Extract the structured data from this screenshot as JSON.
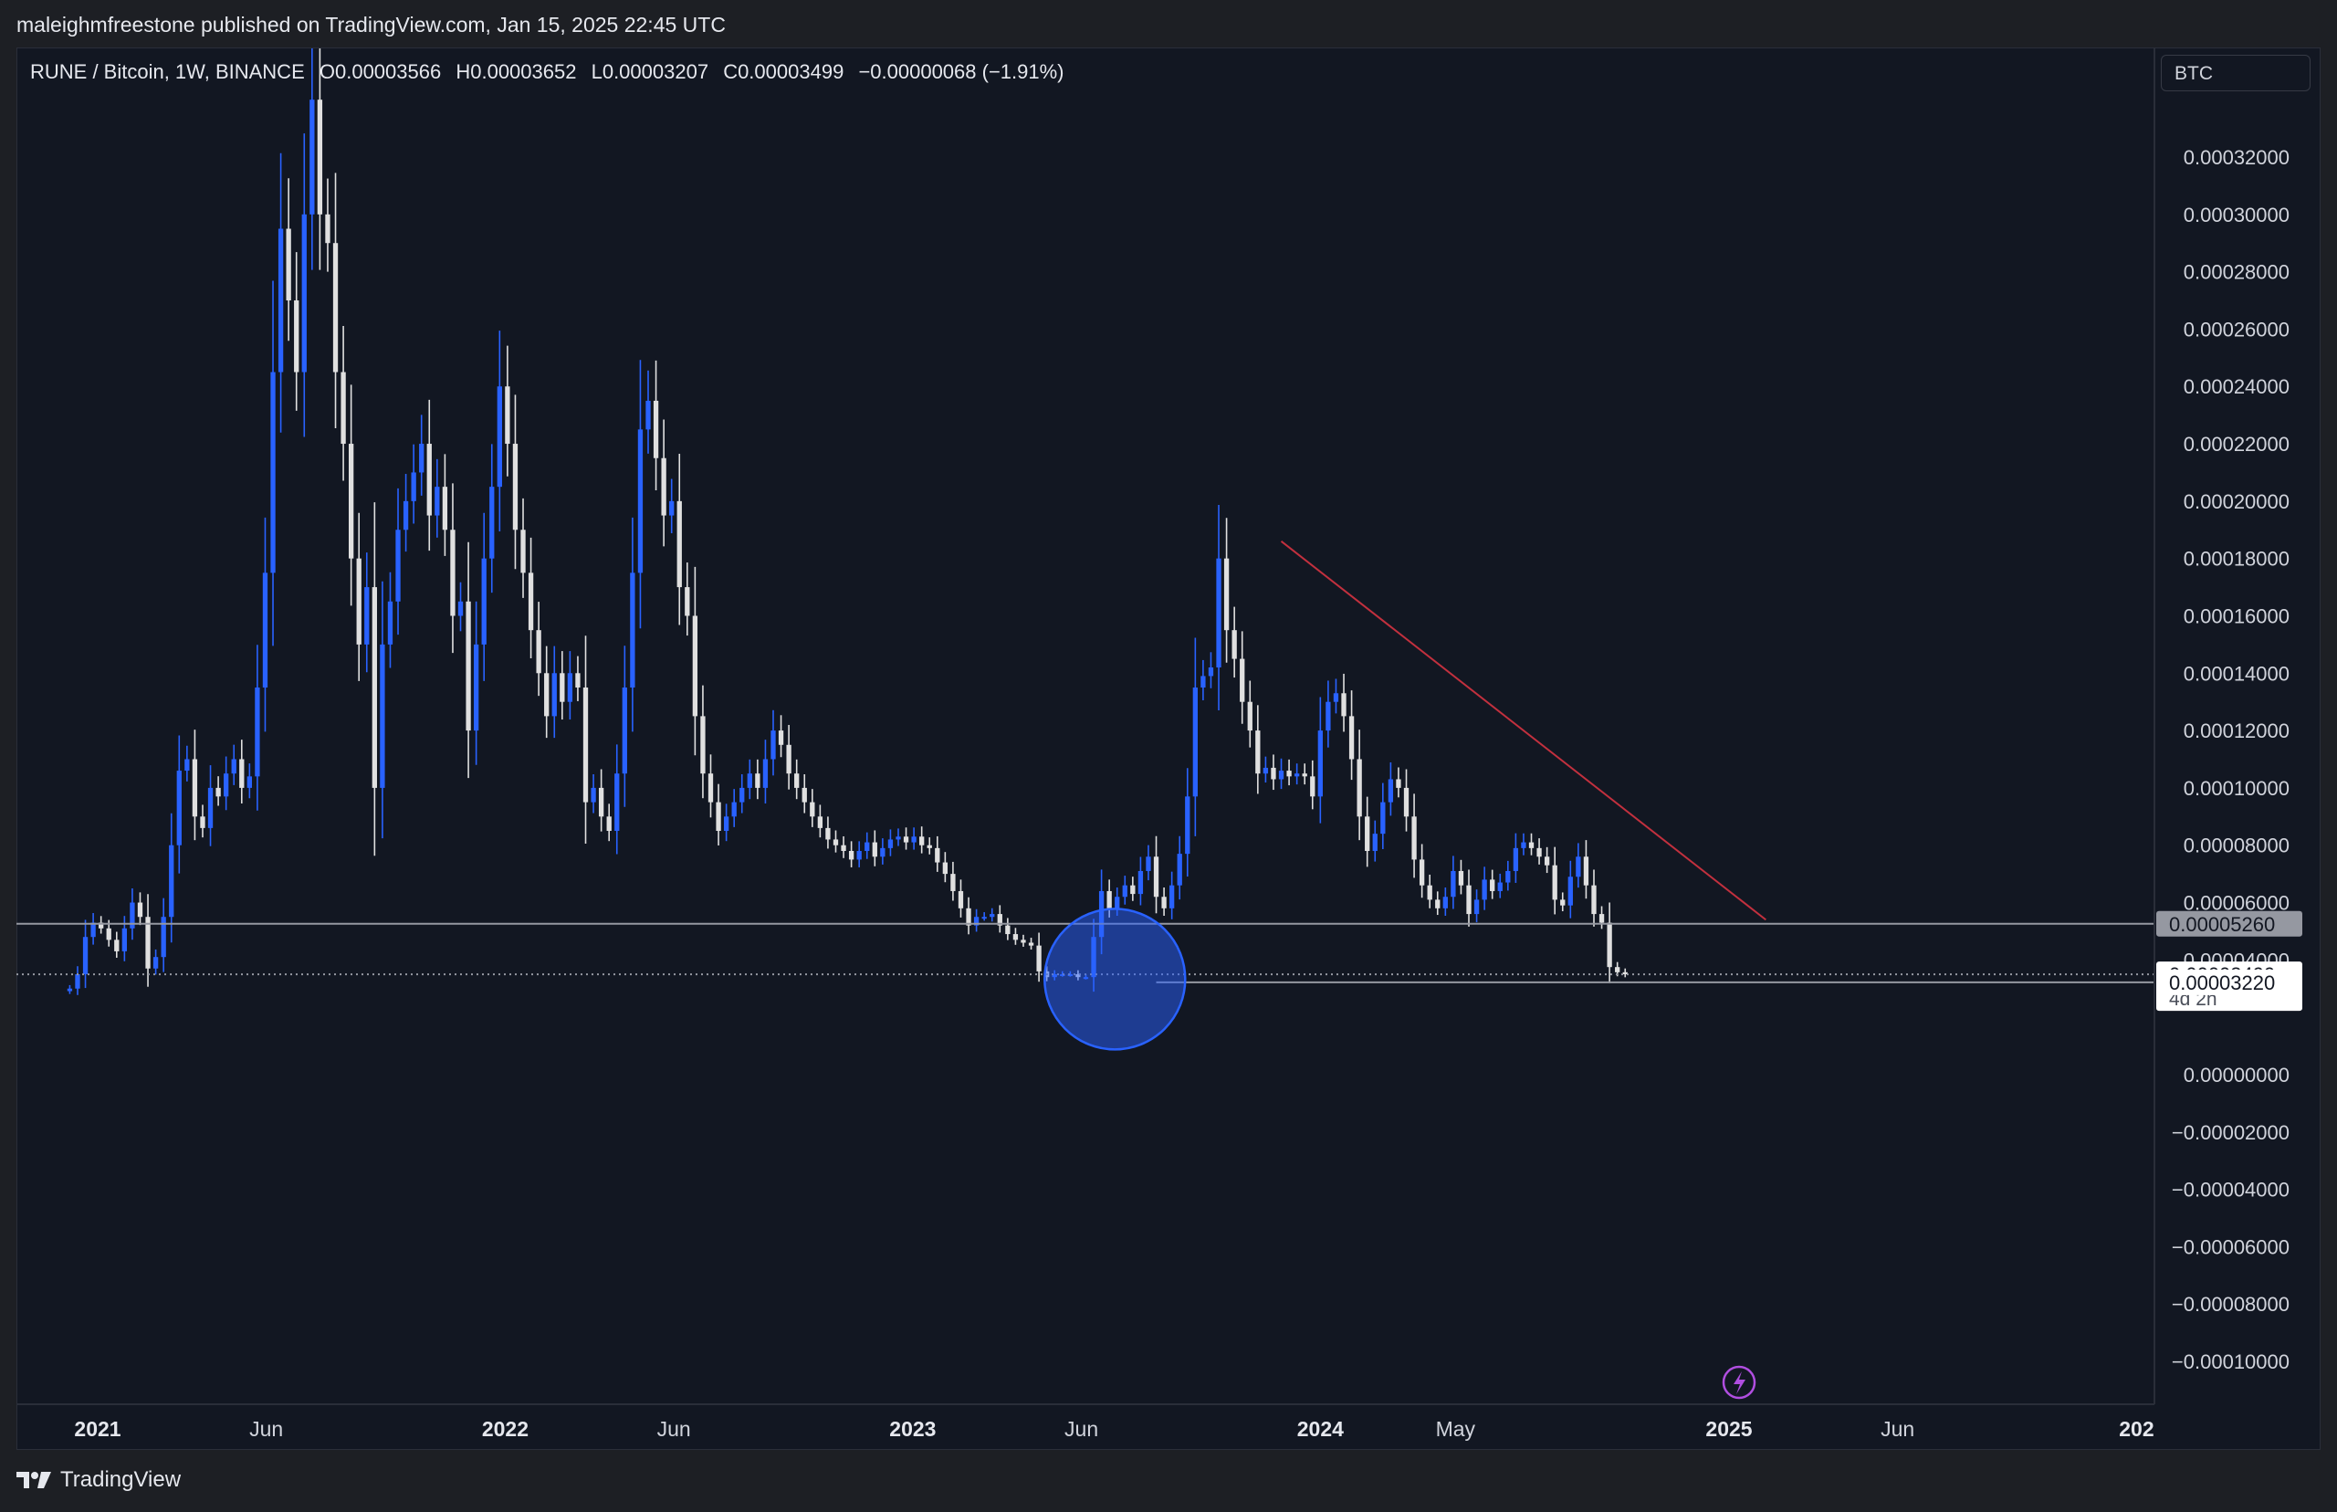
{
  "header": {
    "published_text": "maleighmfreestone published on TradingView.com, Jan 15, 2025 22:45 UTC"
  },
  "legend": {
    "symbol": "RUNE / Bitcoin, 1W, BINANCE",
    "open": "O0.00003566",
    "high": "H0.00003652",
    "low": "L0.00003207",
    "close": "C0.00003499",
    "change": "−0.00000068 (−1.91%)"
  },
  "currency_selector": "BTC",
  "footer": {
    "brand": "TradingView",
    "logo_icon": "tradingview-logo-icon"
  },
  "colors": {
    "background": "#121722",
    "up_candle": "#2962ff",
    "down_candle": "#e0e0e0",
    "trendline": "#c2303e",
    "highlight_circle": "#2962ff",
    "support_line": "#9598a1",
    "lightning_badge": "#b04ee0"
  },
  "chart_data": {
    "type": "candlestick",
    "title": "",
    "y_axis": {
      "side": "right",
      "ticks": [
        "0.00032000",
        "0.00030000",
        "0.00028000",
        "0.00026000",
        "0.00024000",
        "0.00022000",
        "0.00020000",
        "0.00018000",
        "0.00016000",
        "0.00014000",
        "0.00012000",
        "0.00010000",
        "0.00008000",
        "0.00006000",
        "0.00004000",
        "0.00000000",
        "−0.00002000",
        "−0.00004000",
        "−0.00006000",
        "−0.00008000",
        "−0.00010000"
      ],
      "ylim": [
        -0.00011,
        0.00034
      ],
      "grid": false
    },
    "x_axis": {
      "ticks": [
        {
          "label": "2021",
          "date": "2021-01-01",
          "bold": true
        },
        {
          "label": "Jun",
          "date": "2021-06-01",
          "bold": false
        },
        {
          "label": "2022",
          "date": "2022-01-01",
          "bold": true
        },
        {
          "label": "Jun",
          "date": "2022-06-01",
          "bold": false
        },
        {
          "label": "2023",
          "date": "2023-01-01",
          "bold": true
        },
        {
          "label": "Jun",
          "date": "2023-06-01",
          "bold": false
        },
        {
          "label": "2024",
          "date": "2024-01-01",
          "bold": true
        },
        {
          "label": "May",
          "date": "2024-05-01",
          "bold": false
        },
        {
          "label": "2025",
          "date": "2025-01-01",
          "bold": true
        },
        {
          "label": "Jun",
          "date": "2025-06-01",
          "bold": false
        },
        {
          "label": "202",
          "date": "2026-01-01",
          "bold": true
        }
      ]
    },
    "price_tags": [
      {
        "label": "0.00005260",
        "value": 5.26e-05,
        "style": "grey"
      },
      {
        "label": "0.00003499",
        "value": 3.499e-05,
        "style": "white",
        "countdown": "4d 2h"
      },
      {
        "label": "0.00003220",
        "value": 3.22e-05,
        "style": "white"
      }
    ],
    "horizontal_lines": [
      {
        "value": 5.26e-05,
        "style": "solid"
      },
      {
        "value": 3.499e-05,
        "style": "dotted"
      },
      {
        "value": 3.22e-05,
        "style": "solid",
        "x_start": "2023-08-07"
      }
    ],
    "trendline": {
      "from": {
        "date": "2023-11-27",
        "value": 0.000186
      },
      "to": {
        "date": "2025-02-03",
        "value": 5.4e-05
      }
    },
    "highlight_circle": {
      "center_date": "2023-07-01",
      "center_value": 3.33e-05
    },
    "weekly_close": [
      3e-05,
      3.5e-05,
      4.8e-05,
      5.3e-05,
      5.1e-05,
      4.7e-05,
      4.3e-05,
      5.1e-05,
      6e-05,
      5.5e-05,
      3.7e-05,
      4.1e-05,
      5.5e-05,
      8e-05,
      0.000106,
      0.00011,
      9e-05,
      8.6e-05,
      0.0001,
      9.7e-05,
      0.000105,
      0.00011,
      0.0001,
      0.000104,
      0.000135,
      0.000175,
      0.000245,
      0.000295,
      0.00027,
      0.000245,
      0.0003,
      0.00034,
      0.0003,
      0.00029,
      0.000245,
      0.00022,
      0.00018,
      0.00015,
      0.00017,
      0.0001,
      0.00015,
      0.000165,
      0.00019,
      0.0002,
      0.00021,
      0.00022,
      0.000195,
      0.000205,
      0.00019,
      0.00016,
      0.000165,
      0.00012,
      0.00015,
      0.00018,
      0.000205,
      0.00024,
      0.00022,
      0.00019,
      0.000175,
      0.000155,
      0.00014,
      0.000125,
      0.00014,
      0.00013,
      0.00014,
      0.000135,
      9.5e-05,
      0.0001,
      9e-05,
      8.5e-05,
      0.000105,
      0.000135,
      0.000175,
      0.000225,
      0.000235,
      0.000215,
      0.000195,
      0.0002,
      0.00017,
      0.00016,
      0.000125,
      0.000105,
      9.5e-05,
      8.5e-05,
      9e-05,
      9.5e-05,
      0.0001,
      0.000105,
      0.0001,
      0.00011,
      0.00012,
      0.000115,
      0.000105,
      0.0001,
      9.5e-05,
      9e-05,
      8.6e-05,
      8.2e-05,
      8e-05,
      7.8e-05,
      7.5e-05,
      7.8e-05,
      8.1e-05,
      7.6e-05,
      7.9e-05,
      8.2e-05,
      8.3e-05,
      8.1e-05,
      8.3e-05,
      8e-05,
      7.9e-05,
      7.4e-05,
      7e-05,
      6.4e-05,
      5.8e-05,
      5.2e-05,
      5.5e-05,
      5.5e-05,
      5.6e-05,
      5.2e-05,
      4.9e-05,
      4.7e-05,
      4.6e-05,
      4.5e-05,
      3.6e-05,
      3.4e-05,
      3.5e-05,
      3.5e-05,
      3.5e-05,
      3.4e-05,
      3.4e-05,
      4.8e-05,
      6.4e-05,
      5.8e-05,
      6.2e-05,
      6.6e-05,
      6.3e-05,
      7.1e-05,
      7.6e-05,
      6.2e-05,
      5.8e-05,
      6.6e-05,
      7.7e-05,
      9.7e-05,
      0.000135,
      0.000139,
      0.000142,
      0.00018,
      0.000155,
      0.000145,
      0.00013,
      0.00012,
      0.000105,
      0.000107,
      0.000103,
      0.000106,
      0.000104,
      0.000105,
      0.000104,
      9.7e-05,
      0.00012,
      0.00013,
      0.000133,
      0.000125,
      0.00011,
      9e-05,
      7.8e-05,
      8.4e-05,
      9.5e-05,
      0.000103,
      0.0001,
      9e-05,
      7.5e-05,
      6.6e-05,
      6.1e-05,
      5.8e-05,
      6.2e-05,
      7.1e-05,
      6.6e-05,
      5.6e-05,
      6.1e-05,
      6.8e-05,
      6.4e-05,
      6.7e-05,
      7.1e-05,
      7.9e-05,
      8.1e-05,
      7.9e-05,
      7.6e-05,
      7.3e-05,
      6.1e-05,
      5.9e-05,
      6.9e-05,
      7.6e-05,
      6.6e-05,
      5.6e-05,
      5.3e-05,
      3.75e-05,
      3.57e-05,
      3.5e-05
    ]
  }
}
